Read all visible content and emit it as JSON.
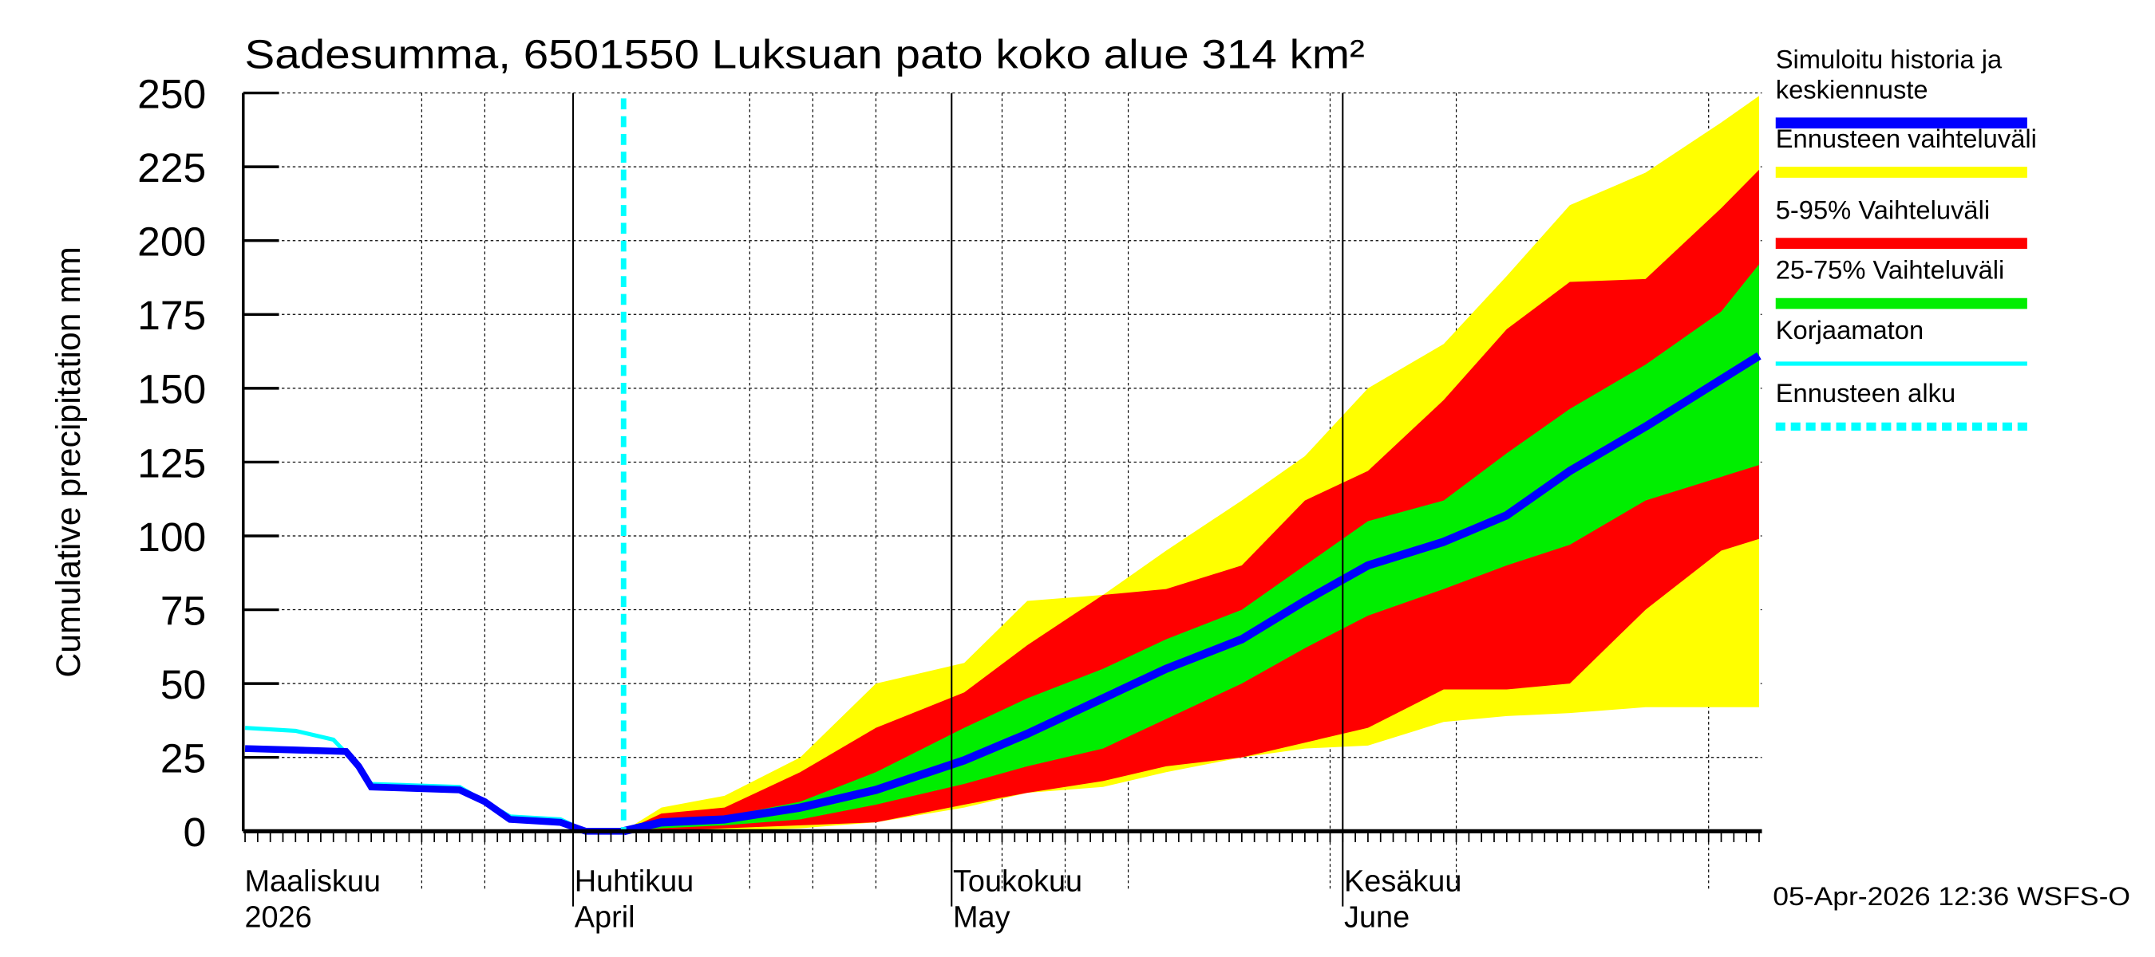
{
  "chart_data": {
    "type": "area",
    "title": "Sadesumma, 6501550 Luksuan pato koko alue 314 km²",
    "ylabel": "Cumulative precipitation   mm",
    "ylim": [
      0,
      250
    ],
    "yticks": [
      0,
      25,
      50,
      75,
      100,
      125,
      150,
      175,
      200,
      225,
      250
    ],
    "xlim": [
      "2026-03-06",
      "2026-07-04"
    ],
    "grid": true,
    "legend_position": "right",
    "month_labels": [
      {
        "date": "2026-03-01",
        "line1": "Maaliskuu",
        "line2": "2026"
      },
      {
        "date": "2026-04-01",
        "line1": "Huhtikuu",
        "line2": "April"
      },
      {
        "date": "2026-05-01",
        "line1": "Toukokuu",
        "line2": "May"
      },
      {
        "date": "2026-06-01",
        "line1": "Kesäkuu",
        "line2": "June"
      }
    ],
    "forecast_start": "2026-04-05",
    "history": {
      "simulated": {
        "x": [
          "2026-03-06",
          "2026-03-10",
          "2026-03-14",
          "2026-03-15",
          "2026-03-16",
          "2026-03-23",
          "2026-03-25",
          "2026-03-27",
          "2026-03-31",
          "2026-04-02",
          "2026-04-05"
        ],
        "y": [
          28,
          27.5,
          27,
          22,
          15,
          14,
          10,
          4,
          3,
          0,
          0
        ]
      },
      "uncorrected": {
        "x": [
          "2026-03-06",
          "2026-03-10",
          "2026-03-13",
          "2026-03-15",
          "2026-03-16",
          "2026-03-23",
          "2026-03-25",
          "2026-03-27",
          "2026-03-31",
          "2026-04-02",
          "2026-04-05"
        ],
        "y": [
          35,
          34,
          31,
          22,
          16,
          15,
          10,
          5,
          4,
          0,
          0
        ]
      }
    },
    "forecast_x": [
      "2026-04-05",
      "2026-04-08",
      "2026-04-13",
      "2026-04-19",
      "2026-04-25",
      "2026-05-02",
      "2026-05-07",
      "2026-05-13",
      "2026-05-18",
      "2026-05-24",
      "2026-05-29",
      "2026-06-03",
      "2026-06-09",
      "2026-06-14",
      "2026-06-19",
      "2026-06-25",
      "2026-07-01",
      "2026-07-04"
    ],
    "series": [
      {
        "name": "Ennusteen vaihteluväli",
        "color": "#ffff00",
        "upper": [
          0,
          8,
          12,
          25,
          50,
          57,
          78,
          80,
          95,
          112,
          127,
          150,
          165,
          188,
          212,
          223,
          240,
          249
        ],
        "lower": [
          0,
          0,
          0,
          1,
          3,
          8,
          13,
          15,
          20,
          25,
          28,
          29,
          37,
          39,
          40,
          42,
          42,
          42
        ]
      },
      {
        "name": "5-95% Vaihteluväli",
        "color": "#ff0000",
        "upper": [
          0,
          6,
          8,
          20,
          35,
          47,
          63,
          80,
          82,
          90,
          112,
          122,
          146,
          170,
          186,
          187,
          211,
          224
        ],
        "lower": [
          0,
          0,
          1,
          2,
          3,
          9,
          13,
          17,
          22,
          25,
          30,
          35,
          48,
          48,
          50,
          75,
          95,
          99
        ]
      },
      {
        "name": "25-75% Vaihteluväli",
        "color": "#00ee00",
        "upper": [
          0,
          4,
          5,
          10,
          20,
          35,
          45,
          55,
          65,
          75,
          90,
          105,
          112,
          128,
          143,
          158,
          176,
          192
        ],
        "lower": [
          0,
          1,
          2,
          4,
          9,
          16,
          22,
          28,
          38,
          50,
          62,
          73,
          82,
          90,
          97,
          112,
          120,
          124
        ]
      },
      {
        "name": "Simuloitu historia ja keskiennuste",
        "color": "#0000ff",
        "values": [
          0,
          3,
          4,
          8,
          14,
          24,
          33,
          45,
          55,
          65,
          78,
          90,
          98,
          107,
          122,
          137,
          153,
          161
        ]
      }
    ],
    "legend": [
      {
        "label": "Simuloitu historia ja",
        "label2": "keskiennuste",
        "color": "#0000ff",
        "style": "thick"
      },
      {
        "label": "Ennusteen vaihteluväli",
        "color": "#ffff00",
        "style": "thick"
      },
      {
        "label": "5-95% Vaihteluväli",
        "color": "#ff0000",
        "style": "thick"
      },
      {
        "label": "25-75% Vaihteluväli",
        "color": "#00ee00",
        "style": "thick"
      },
      {
        "label": "Korjaamaton",
        "color": "#00ffff",
        "style": "thin"
      },
      {
        "label": "Ennusteen alku",
        "color": "#00ffff",
        "style": "dashed"
      }
    ],
    "footer": "05-Apr-2026 12:36 WSFS-O"
  }
}
